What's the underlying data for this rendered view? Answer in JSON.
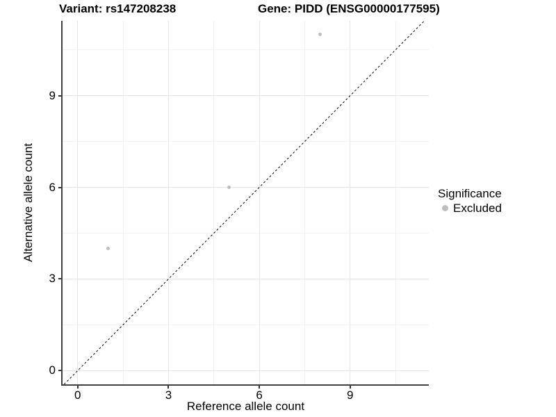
{
  "title": {
    "variant": "Variant: rs147208238",
    "gene": "Gene: PIDD (ENSG00000177595)"
  },
  "chart_data": {
    "type": "scatter",
    "title": "Variant: rs147208238   Gene: PIDD (ENSG00000177595)",
    "xlabel": "Reference allele count",
    "ylabel": "Alternative allele count",
    "xlim": [
      -0.5,
      11.6
    ],
    "ylim": [
      -0.45,
      11.45
    ],
    "x_ticks": [
      0,
      3,
      6,
      9
    ],
    "y_ticks": [
      0,
      3,
      6,
      9
    ],
    "x_minor": [
      1.5,
      4.5,
      7.5,
      10.5
    ],
    "y_minor": [
      1.5,
      4.5,
      7.5,
      10.5
    ],
    "grid": "major+minor",
    "series": [
      {
        "name": "Excluded",
        "color": "#bebebe",
        "points": [
          [
            1,
            4
          ],
          [
            5,
            6
          ],
          [
            8,
            11
          ]
        ]
      }
    ],
    "identity_line": {
      "equation": "y = x",
      "style": "dashed",
      "color": "#000000"
    },
    "legend": {
      "position": "right",
      "title": "Significance",
      "items": [
        {
          "label": "Excluded",
          "color": "#bebebe"
        }
      ]
    },
    "colors": {
      "point": "#bebebe",
      "axis_line": "#404040",
      "tick_mark": "#333333",
      "grid_major": "#e5e5e5",
      "grid_minor": "#f2f2f2",
      "text": "#000000",
      "background": "#ffffff"
    }
  }
}
